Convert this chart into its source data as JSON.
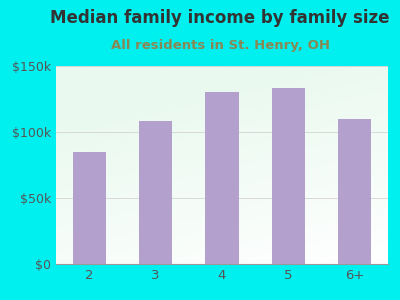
{
  "title": "Median family income by family size",
  "subtitle": "All residents in St. Henry, OH",
  "categories": [
    "2",
    "3",
    "4",
    "5",
    "6+"
  ],
  "values": [
    85000,
    108000,
    130000,
    133000,
    110000
  ],
  "bar_color": "#b3a0cc",
  "background_outer": "#00f0f0",
  "title_color": "#333333",
  "subtitle_color": "#6a6a6a",
  "tick_color": "#555555",
  "ylim": [
    0,
    150000
  ],
  "yticks": [
    0,
    50000,
    100000,
    150000
  ],
  "ytick_labels": [
    "$0",
    "$50k",
    "$100k",
    "$150k"
  ],
  "title_fontsize": 12,
  "subtitle_fontsize": 9.5
}
